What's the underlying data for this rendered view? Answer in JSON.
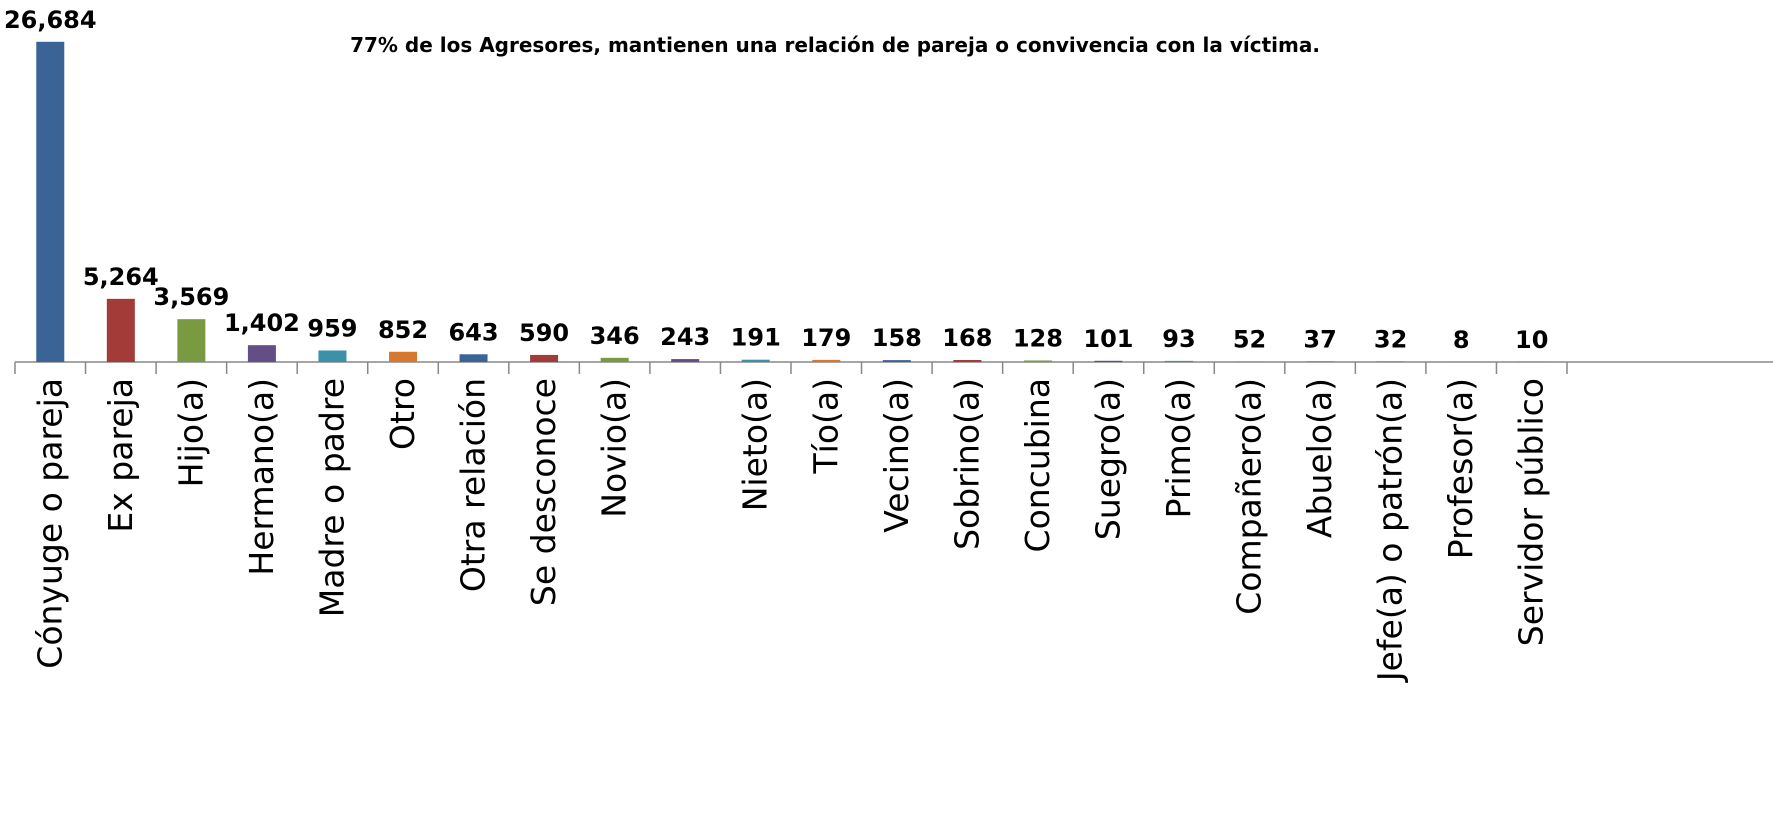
{
  "chart_data": {
    "type": "bar",
    "title": "77% de los Agresores, mantienen una relación de pareja o convivencia con la víctima.",
    "categories": [
      "Cónyuge o pareja",
      "Ex pareja",
      "Hijo(a)",
      "Hermano(a)",
      "Madre o padre",
      "Otro",
      "Otra relación",
      "Se desconoce",
      "Novio(a)",
      null,
      "Nieto(a)",
      "Tío(a)",
      "Vecino(a)",
      "Sobrino(a)",
      "Concubina",
      "Suegro(a)",
      "Primo(a)",
      "Compañero(a)",
      "Abuelo(a)",
      "Jefe(a) o patrón(a)",
      "Profesor(a)",
      "Servidor público"
    ],
    "values": [
      26684,
      5264,
      3569,
      1402,
      959,
      852,
      643,
      590,
      346,
      243,
      191,
      179,
      158,
      168,
      128,
      101,
      93,
      52,
      37,
      32,
      8,
      10
    ],
    "value_labels": [
      "26,684",
      "5,264",
      "3,569",
      "1,402",
      "959",
      "852",
      "643",
      "590",
      "346",
      "243",
      "191",
      "179",
      "158",
      "168",
      "128",
      "101",
      "93",
      "52",
      "37",
      "32",
      "8",
      "10"
    ],
    "colors": [
      "#3b6496",
      "#a33b38",
      "#7a9a42",
      "#634e86",
      "#3a91a8",
      "#d6792e"
    ],
    "ylim": [
      0,
      27000
    ]
  }
}
